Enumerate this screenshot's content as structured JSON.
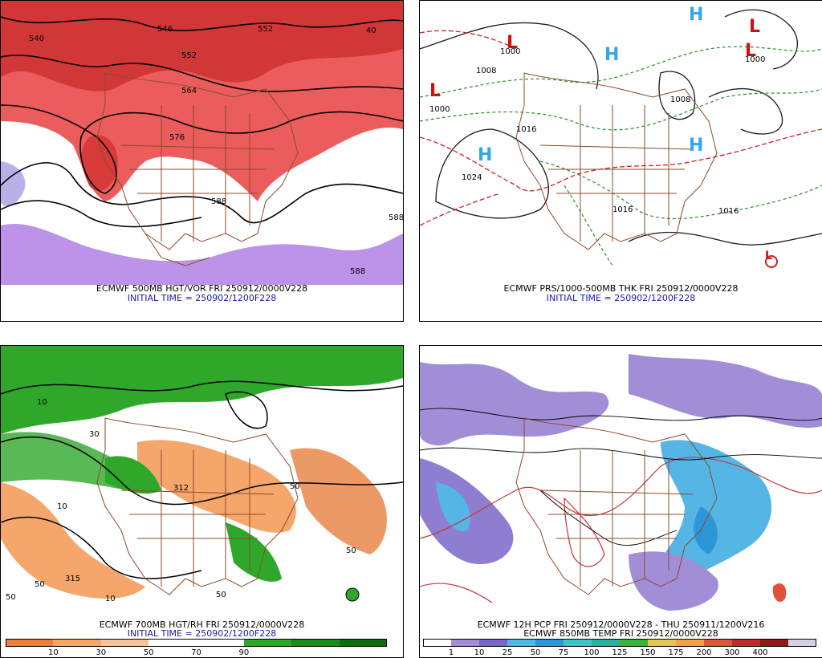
{
  "panels": {
    "p1": {
      "caption": "ECMWF 500MB HGT/VOR FRI 250912/0000V228",
      "init": "INITIAL TIME = 250902/1200F228",
      "contour_labels": [
        "540",
        "546",
        "552",
        "552",
        "564",
        "576",
        "588",
        "588",
        "588",
        "40"
      ]
    },
    "p2": {
      "caption": "ECMWF PRS/1000-500MB THK FRI 250912/0000V228",
      "init": "INITIAL TIME = 250902/1200F228",
      "contour_labels": [
        "1024",
        "1000",
        "1008",
        "1016",
        "1016",
        "1016",
        "1000",
        "1008",
        "1000"
      ]
    },
    "p3": {
      "caption": "ECMWF 700MB HGT/RH FRI 250912/0000V228",
      "init": "INITIAL TIME = 250902/1200F228",
      "contour_labels": [
        "10",
        "10",
        "50",
        "50",
        "50",
        "30",
        "312",
        "315",
        "50",
        "10",
        "50"
      ]
    },
    "p4": {
      "caption": "ECMWF 12H PCP FRI 250912/0000V228 - THU 250911/1200V216",
      "caption2": "ECMWF 850MB TEMP FRI 250912/0000V228"
    }
  },
  "rh_colorbar": {
    "colors": [
      "#e9803f",
      "#f4a66b",
      "#f7c398",
      "#ffffff",
      "#ffffff",
      "#2fa72b",
      "#1d8a1d",
      "#0d6d0d"
    ],
    "ticks": [
      "10",
      "30",
      "50",
      "70",
      "90"
    ]
  },
  "pcp_colorbar": {
    "colors": [
      "#ffffff",
      "#a28ed7",
      "#7a66c9",
      "#55b6e6",
      "#2d96d6",
      "#37c7c7",
      "#1fb5a0",
      "#3cb33c",
      "#e6c64d",
      "#f0a43a",
      "#e0533a",
      "#c4282a",
      "#8e1a1a",
      "#d7cfe6"
    ],
    "ticks": [
      "1",
      "10",
      "25",
      "50",
      "75",
      "100",
      "125",
      "150",
      "175",
      "200",
      "300",
      "400"
    ]
  },
  "highs_lows": {
    "p2_H": [
      "H",
      "H",
      "H",
      "H"
    ],
    "p2_L": [
      "L",
      "L",
      "L",
      "L",
      "L"
    ]
  }
}
